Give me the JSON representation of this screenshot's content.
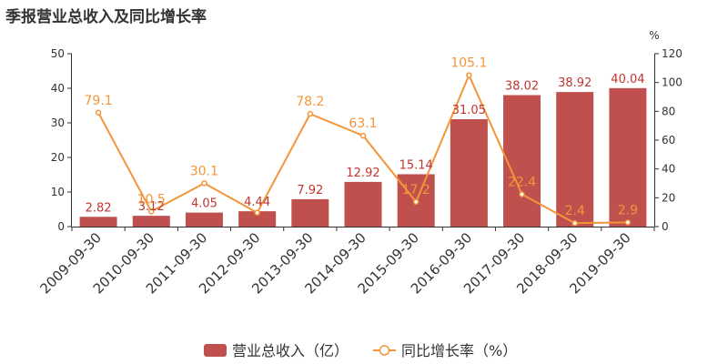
{
  "title": "季报营业总收入及同比增长率",
  "colors": {
    "bar": "#c0504d",
    "bar_label": "#c23531",
    "line": "#f3953a",
    "axis": "#333333"
  },
  "chart_data": {
    "type": "bar",
    "title": "季报营业总收入及同比增长率",
    "categories": [
      "2009-09-30",
      "2010-09-30",
      "2011-09-30",
      "2012-09-30",
      "2013-09-30",
      "2014-09-30",
      "2015-09-30",
      "2016-09-30",
      "2017-09-30",
      "2018-09-30",
      "2019-09-30"
    ],
    "series": [
      {
        "name": "营业总收入（亿）",
        "type": "bar",
        "axis": "left",
        "values": [
          2.82,
          3.12,
          4.05,
          4.44,
          7.92,
          12.92,
          15.14,
          31.05,
          38.02,
          38.92,
          40.04
        ],
        "labels": [
          "2.82",
          "3.12",
          "4.05",
          "4.44",
          "7.92",
          "12.92",
          "15.14",
          "31.05",
          "38.02",
          "38.92",
          "40.04"
        ]
      },
      {
        "name": "同比增长率（%）",
        "type": "line",
        "axis": "right",
        "values": [
          79.1,
          10.5,
          30.1,
          9.6,
          78.2,
          63.1,
          17.2,
          105.1,
          22.4,
          2.4,
          2.9
        ],
        "labels": [
          "79.1",
          "10.5",
          "30.1",
          "",
          "78.2",
          "63.1",
          "17.2",
          "105.1",
          "22.4",
          "2.4",
          "2.9"
        ]
      }
    ],
    "y_left": {
      "ylim": [
        0,
        50
      ],
      "ticks": [
        0,
        10,
        20,
        30,
        40,
        50
      ]
    },
    "y_right": {
      "unit": "%",
      "ylim": [
        0,
        120
      ],
      "ticks": [
        0,
        20,
        40,
        60,
        80,
        100,
        120
      ]
    },
    "grid": false,
    "legend": {
      "position": "bottom-center",
      "items": [
        {
          "label": "营业总收入（亿）",
          "marker": "bar"
        },
        {
          "label": "同比增长率（%）",
          "marker": "line-circle"
        }
      ]
    }
  }
}
